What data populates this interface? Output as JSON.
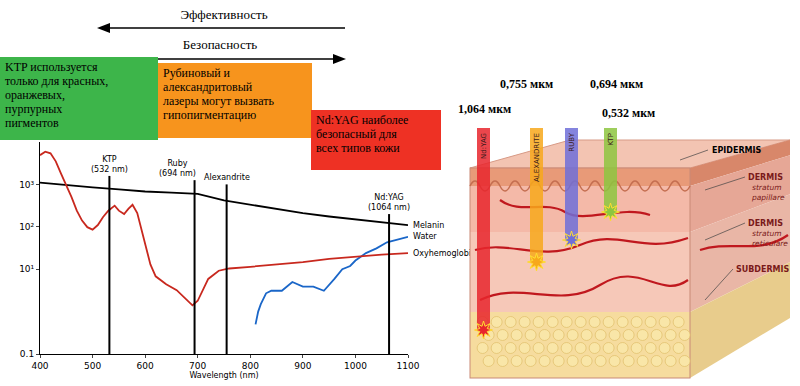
{
  "chart_data": {
    "type": "line",
    "xlabel": "Wavelength (nm)",
    "xlim": [
      400,
      1100
    ],
    "xticks": [
      400,
      500,
      600,
      700,
      800,
      900,
      1000,
      1100
    ],
    "ylim": [
      0.1,
      10000
    ],
    "yticks": [
      0.1,
      {
        "value": 10,
        "label": "10¹"
      },
      {
        "value": 100,
        "label": "10²"
      },
      {
        "value": 1000,
        "label": "10³"
      }
    ],
    "log": "y",
    "grid": false,
    "series": [
      {
        "name": "Melanin",
        "color": "#000000",
        "x": [
          400,
          450,
          500,
          550,
          600,
          650,
          700,
          750,
          800,
          850,
          900,
          950,
          1000,
          1050,
          1100
        ],
        "values": [
          1100,
          950,
          850,
          760,
          680,
          640,
          600,
          420,
          330,
          260,
          210,
          175,
          150,
          125,
          110
        ]
      },
      {
        "name": "Water",
        "color": "#1a66c8",
        "x": [
          810,
          815,
          820,
          830,
          840,
          860,
          880,
          900,
          920,
          940,
          960,
          975,
          990,
          1000,
          1020,
          1040,
          1060,
          1080,
          1100
        ],
        "values": [
          0.5,
          1.0,
          1.5,
          2.7,
          3.1,
          3.1,
          5.0,
          3.9,
          3.9,
          3.1,
          5.9,
          10,
          11.9,
          16,
          24,
          31,
          43,
          51,
          58
        ]
      },
      {
        "name": "Oxyhemoglobin",
        "color": "#c8281e",
        "x": [
          400,
          410,
          420,
          430,
          440,
          450,
          460,
          470,
          480,
          490,
          500,
          510,
          520,
          530,
          542,
          550,
          560,
          568,
          576,
          585,
          595,
          600,
          610,
          620,
          640,
          660,
          680,
          690,
          700,
          710,
          720,
          740,
          760,
          800,
          850,
          900,
          950,
          1000,
          1050,
          1100
        ],
        "values": [
          4900,
          5900,
          5400,
          3500,
          1800,
          960,
          500,
          240,
          140,
          98,
          86,
          110,
          170,
          240,
          315,
          240,
          200,
          265,
          330,
          210,
          72,
          38,
          13,
          6.8,
          4.4,
          3.2,
          1.9,
          1.4,
          1.8,
          3.2,
          5.9,
          9.2,
          10.4,
          11.4,
          13,
          14.7,
          17.5,
          20,
          22,
          24
        ]
      }
    ],
    "annotations": [
      {
        "text": [
          "KTP",
          "(532 nm)"
        ],
        "x": 532
      },
      {
        "text": [
          "Ruby",
          "(694 nm)"
        ],
        "x": 694
      },
      {
        "text": [
          "Alexandrite"
        ],
        "x": 755
      },
      {
        "text": [
          "Nd:YAG",
          "(1064 nm)"
        ],
        "x": 1064
      }
    ]
  },
  "header": {
    "arrows": [
      "Эффективность",
      "Безопасность"
    ],
    "boxes": [
      {
        "text": [
          "KTP используется",
          "только для красных,",
          "оранжевых,",
          "пурпурных",
          "пигментов"
        ],
        "color": "#3db54a"
      },
      {
        "text": [
          "Рубиновый и",
          "александритовый",
          "лазеры могут вызвать",
          "гипопигментацию"
        ],
        "color": "#f7941d"
      },
      {
        "text": [
          "Nd:YAG наиболее",
          "безопасный для",
          "всех типов кожи"
        ],
        "color": "#ee3124"
      }
    ]
  },
  "skin_diagram": {
    "wavelengths": [
      "1,064 мкм",
      "0,755 мкм",
      "0,694 мкм",
      "0,532 мкм"
    ],
    "beams": [
      "Nd:YAG",
      "ALEXANDRITE",
      "RUBY",
      "KTP"
    ],
    "beam_colors": [
      "#e8262d",
      "#f7a81b",
      "#6f6fd8",
      "#8dc63f"
    ],
    "layers": [
      [
        "EPIDERMIS"
      ],
      [
        "DERMIS",
        "stratum",
        "papillare"
      ],
      [
        "DERMIS",
        "stratum",
        "reticulare"
      ],
      [
        "SUBDERMIS"
      ]
    ]
  }
}
